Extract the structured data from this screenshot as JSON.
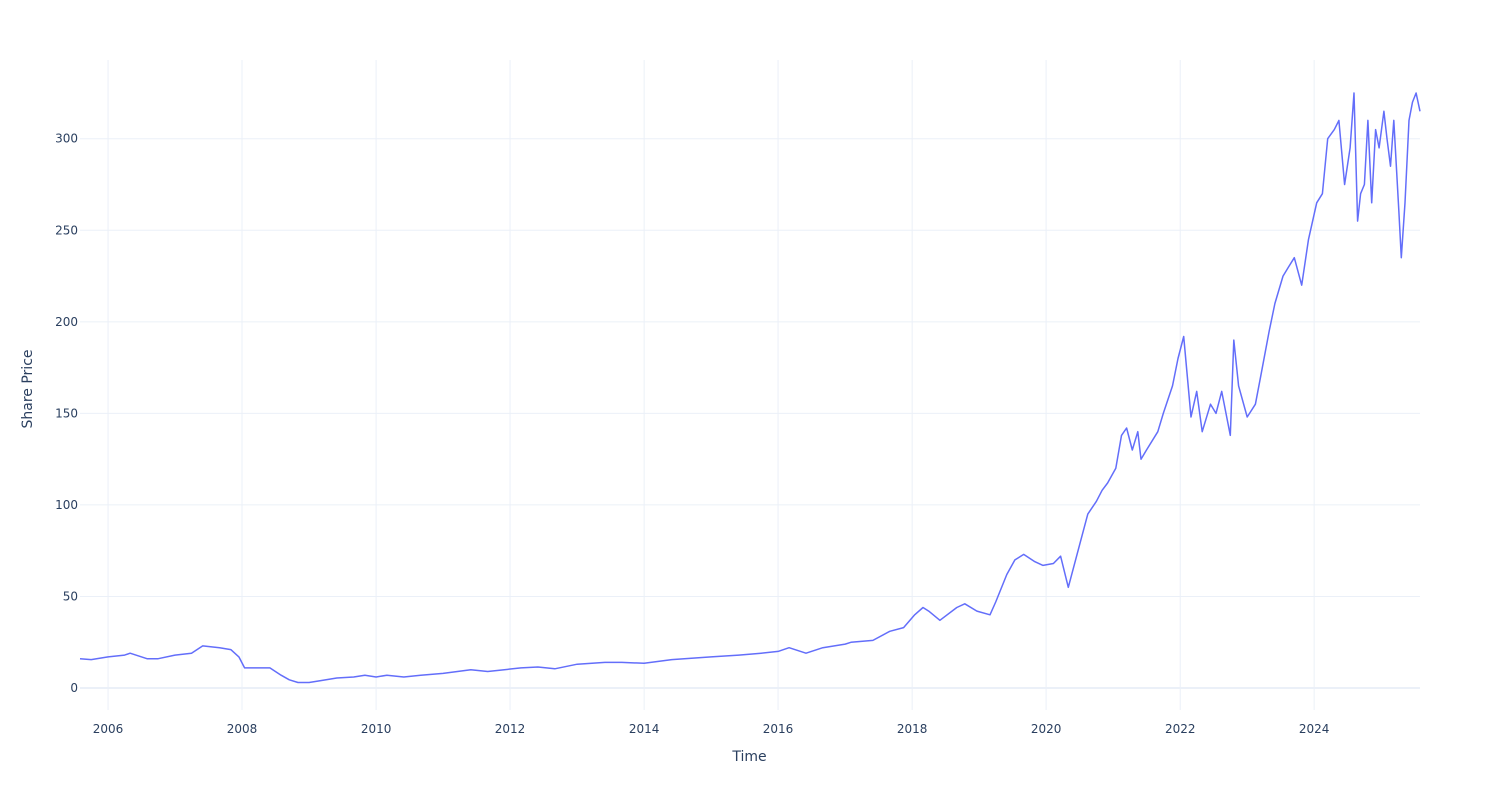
{
  "chart_data": {
    "type": "line",
    "title": "",
    "xlabel": "Time",
    "ylabel": "Share Price",
    "xlim": [
      "2005-08-01",
      "2025-07-31"
    ],
    "ylim": [
      -12,
      343
    ],
    "x_ticks": [
      {
        "date": "2006-01-01",
        "label": "2006"
      },
      {
        "date": "2008-01-01",
        "label": "2008"
      },
      {
        "date": "2010-01-01",
        "label": "2010"
      },
      {
        "date": "2012-01-01",
        "label": "2012"
      },
      {
        "date": "2014-01-01",
        "label": "2014"
      },
      {
        "date": "2016-01-01",
        "label": "2016"
      },
      {
        "date": "2018-01-01",
        "label": "2018"
      },
      {
        "date": "2020-01-01",
        "label": "2020"
      },
      {
        "date": "2022-01-01",
        "label": "2022"
      },
      {
        "date": "2024-01-01",
        "label": "2024"
      }
    ],
    "y_ticks": [
      {
        "value": 0,
        "label": "0"
      },
      {
        "value": 50,
        "label": "50"
      },
      {
        "value": 100,
        "label": "100"
      },
      {
        "value": 150,
        "label": "150"
      },
      {
        "value": 200,
        "label": "200"
      },
      {
        "value": 250,
        "label": "250"
      },
      {
        "value": 300,
        "label": "300"
      }
    ],
    "grid": true,
    "line_color": "#636efa",
    "series": [
      {
        "name": "",
        "x": [
          "2005-08-01",
          "2005-10-01",
          "2006-01-01",
          "2006-04-01",
          "2006-05-01",
          "2006-08-01",
          "2006-10-01",
          "2007-01-01",
          "2007-04-01",
          "2007-06-01",
          "2007-09-01",
          "2007-11-01",
          "2007-12-15",
          "2008-01-15",
          "2008-03-01",
          "2008-06-01",
          "2008-08-01",
          "2008-09-15",
          "2008-11-01",
          "2009-01-01",
          "2009-03-01",
          "2009-06-01",
          "2009-09-01",
          "2009-11-01",
          "2010-01-01",
          "2010-03-01",
          "2010-06-01",
          "2010-09-01",
          "2011-01-01",
          "2011-06-01",
          "2011-09-01",
          "2011-12-01",
          "2012-03-01",
          "2012-06-01",
          "2012-09-01",
          "2013-01-01",
          "2013-06-01",
          "2013-09-01",
          "2014-01-01",
          "2014-06-01",
          "2015-01-01",
          "2015-06-01",
          "2015-10-01",
          "2016-01-01",
          "2016-03-01",
          "2016-06-01",
          "2016-09-01",
          "2017-01-01",
          "2017-02-01",
          "2017-06-01",
          "2017-09-01",
          "2017-11-15",
          "2018-01-15",
          "2018-03-01",
          "2018-04-01",
          "2018-06-01",
          "2018-09-01",
          "2018-10-15",
          "2018-12-20",
          "2019-03-01",
          "2019-04-01",
          "2019-06-01",
          "2019-07-15",
          "2019-09-01",
          "2019-11-01",
          "2019-12-15",
          "2020-02-10",
          "2020-03-20",
          "2020-05-01",
          "2020-07-01",
          "2020-08-15",
          "2020-10-01",
          "2020-11-01",
          "2020-12-01",
          "2021-01-15",
          "2021-02-15",
          "2021-03-15",
          "2021-04-15",
          "2021-05-15",
          "2021-06-01",
          "2021-07-01",
          "2021-09-01",
          "2021-10-01",
          "2021-11-20",
          "2021-12-20",
          "2022-01-20",
          "2022-03-01",
          "2022-04-01",
          "2022-05-01",
          "2022-06-15",
          "2022-07-15",
          "2022-08-15",
          "2022-10-01",
          "2022-10-20",
          "2022-11-15",
          "2023-01-01",
          "2023-02-15",
          "2023-03-15",
          "2023-05-01",
          "2023-06-01",
          "2023-07-15",
          "2023-08-15",
          "2023-09-15",
          "2023-10-25",
          "2023-12-01",
          "2024-01-15",
          "2024-02-15",
          "2024-03-15",
          "2024-04-20",
          "2024-05-15",
          "2024-06-15",
          "2024-07-15",
          "2024-08-05",
          "2024-08-25",
          "2024-09-10",
          "2024-10-01",
          "2024-10-20",
          "2024-11-10",
          "2024-12-01",
          "2024-12-20",
          "2025-01-15",
          "2025-02-01",
          "2025-02-20",
          "2025-03-10",
          "2025-04-07",
          "2025-04-20",
          "2025-05-10",
          "2025-06-01",
          "2025-06-20",
          "2025-07-10",
          "2025-07-31"
        ],
        "y": [
          16,
          15.5,
          17,
          18,
          19,
          16,
          16,
          18,
          19,
          23,
          22,
          21,
          17,
          11,
          11,
          11,
          7,
          4.5,
          3,
          3,
          4,
          5.5,
          6,
          7,
          6,
          7,
          6,
          7,
          8,
          10,
          9,
          10,
          11,
          11.5,
          10.5,
          13,
          14,
          14,
          13.5,
          15.5,
          17,
          18,
          19,
          20,
          22,
          19,
          22,
          24,
          25,
          26,
          31,
          33,
          40,
          44,
          42,
          37,
          44,
          46,
          42,
          40,
          47,
          62,
          70,
          73,
          69,
          67,
          68,
          72,
          55,
          78,
          95,
          102,
          108,
          112,
          120,
          138,
          142,
          130,
          140,
          125,
          130,
          140,
          150,
          165,
          180,
          192,
          148,
          162,
          140,
          155,
          150,
          162,
          138,
          190,
          165,
          148,
          155,
          170,
          195,
          210,
          225,
          230,
          235,
          220,
          245,
          265,
          270,
          300,
          305,
          310,
          275,
          295,
          325,
          255,
          270,
          275,
          310,
          265,
          305,
          295,
          315,
          300,
          285,
          310,
          260,
          235,
          265,
          310,
          320,
          325,
          315
        ]
      }
    ]
  }
}
